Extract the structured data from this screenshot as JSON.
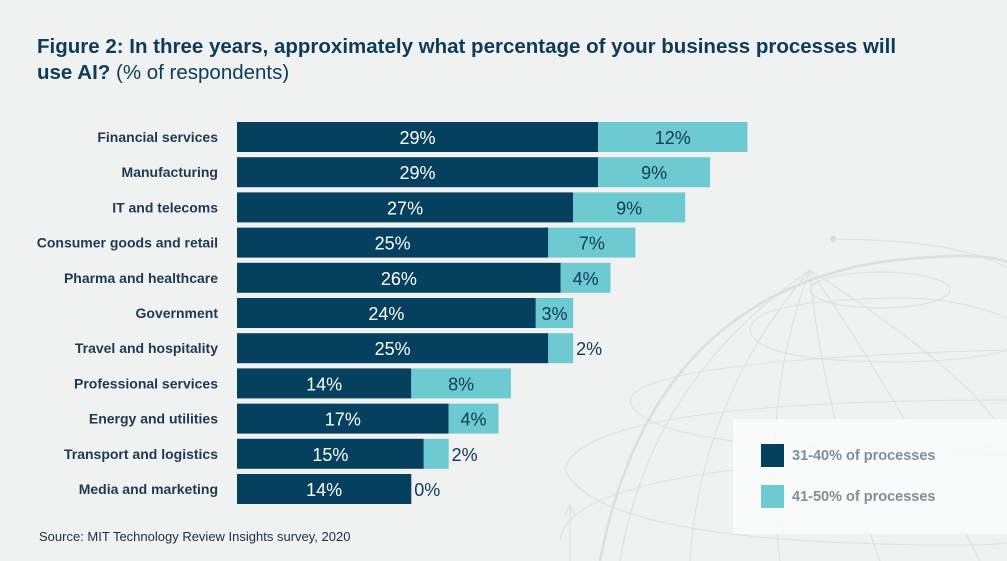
{
  "title": {
    "bold": "Figure 2: In three years, approximately what percentage of your business processes will use AI?",
    "normal": "(% of respondents)"
  },
  "chart_data": {
    "type": "bar",
    "orientation": "horizontal",
    "stacked": true,
    "title": "Figure 2: In three years, approximately what percentage of your business processes will use AI? (% of respondents)",
    "categories": [
      "Financial services",
      "Manufacturing",
      "IT and telecoms",
      "Consumer goods and retail",
      "Pharma and healthcare",
      "Government",
      "Travel and hospitality",
      "Professional services",
      "Energy and utilities",
      "Transport and logistics",
      "Media and marketing"
    ],
    "series": [
      {
        "name": "31-40% of processes",
        "color": "#05405f",
        "values": [
          29,
          29,
          27,
          25,
          26,
          24,
          25,
          14,
          17,
          15,
          14
        ]
      },
      {
        "name": "41-50% of processes",
        "color": "#6dcad0",
        "values": [
          12,
          9,
          9,
          7,
          4,
          3,
          2,
          8,
          4,
          2,
          0
        ]
      }
    ],
    "unit": "%",
    "legend": "bottom-right",
    "grid": false
  },
  "legend": {
    "items": [
      "31-40% of processes",
      "41-50% of processes"
    ]
  },
  "source": "Source: MIT Technology Review Insights survey, 2020"
}
